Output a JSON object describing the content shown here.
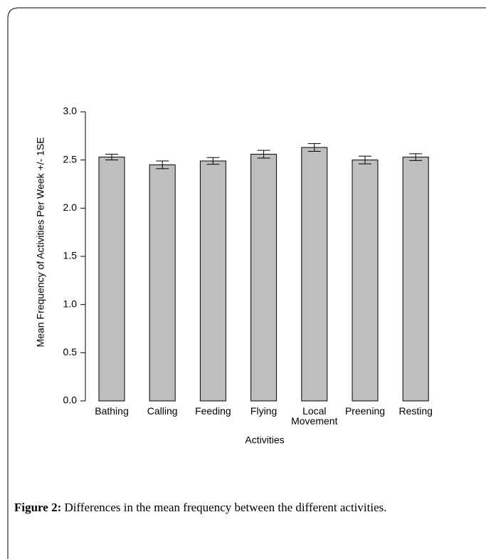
{
  "chart_data": {
    "type": "bar",
    "categories": [
      "Bathing",
      "Calling",
      "Feeding",
      "Flying",
      "Local\nMovement",
      "Preening",
      "Resting"
    ],
    "values": [
      2.53,
      2.45,
      2.49,
      2.56,
      2.63,
      2.5,
      2.53
    ],
    "errors": [
      0.03,
      0.04,
      0.035,
      0.04,
      0.04,
      0.04,
      0.035
    ],
    "color": "#bebebe",
    "ylabel": "Mean Frequency of Activities Per Week +/- 1SE",
    "xlabel": "Activities",
    "ylim": [
      0,
      3
    ],
    "yticks": [
      {
        "value": 0,
        "label": "0.0"
      },
      {
        "value": 0.5,
        "label": "0.5"
      },
      {
        "value": 1,
        "label": "1.0"
      },
      {
        "value": 1.5,
        "label": "1.5"
      },
      {
        "value": 2,
        "label": "2.0"
      },
      {
        "value": 2.5,
        "label": "2.5"
      },
      {
        "value": 3,
        "label": "3.0"
      }
    ]
  },
  "caption": {
    "label": "Figure 2:",
    "text": "Differences in the mean frequency between the different activities."
  }
}
